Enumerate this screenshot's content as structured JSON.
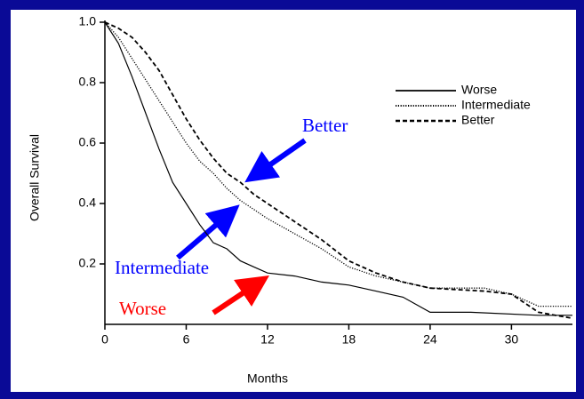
{
  "chart_data": {
    "type": "line",
    "x_label": "Months",
    "y_label": "Overall Survival",
    "xlim": [
      0,
      34.5
    ],
    "ylim": [
      0,
      1
    ],
    "xticks": [
      0,
      6,
      12,
      18,
      24,
      30
    ],
    "yticks": [
      0.2,
      0.4,
      0.6,
      0.8,
      {
        "value": 1,
        "label": "1.0"
      }
    ],
    "legend": "upper right",
    "series": [
      {
        "name": "Worse",
        "color": "#000000",
        "dash": "solid",
        "x": [
          0,
          1,
          2,
          3,
          4,
          5,
          6,
          7,
          8,
          9,
          10,
          11,
          12,
          14,
          16,
          18,
          20,
          22,
          24,
          27,
          32,
          34.5
        ],
        "values": [
          1,
          0.93,
          0.82,
          0.7,
          0.58,
          0.47,
          0.4,
          0.33,
          0.27,
          0.25,
          0.21,
          0.19,
          0.17,
          0.16,
          0.14,
          0.13,
          0.11,
          0.09,
          0.04,
          0.04,
          0.03,
          0.03
        ]
      },
      {
        "name": "Intermediate",
        "color": "#000000",
        "dash": "dotted",
        "x": [
          0,
          1,
          2,
          3,
          4,
          5,
          6,
          7,
          8,
          9,
          10,
          11,
          12,
          14,
          16,
          18,
          20,
          22,
          24,
          28,
          30,
          32,
          34.5
        ],
        "values": [
          1,
          0.95,
          0.88,
          0.81,
          0.74,
          0.67,
          0.6,
          0.54,
          0.5,
          0.45,
          0.41,
          0.38,
          0.35,
          0.3,
          0.25,
          0.19,
          0.16,
          0.14,
          0.12,
          0.12,
          0.1,
          0.06,
          0.06
        ]
      },
      {
        "name": "Better",
        "color": "#000000",
        "dash": "dashed",
        "x": [
          0,
          1,
          2,
          3,
          4,
          5,
          6,
          7,
          8,
          9,
          10,
          11,
          12,
          14,
          16,
          18,
          20,
          22,
          24,
          28,
          30,
          32,
          34.5
        ],
        "values": [
          1,
          0.98,
          0.95,
          0.9,
          0.84,
          0.76,
          0.68,
          0.61,
          0.55,
          0.5,
          0.47,
          0.43,
          0.4,
          0.34,
          0.28,
          0.21,
          0.17,
          0.14,
          0.12,
          0.11,
          0.1,
          0.04,
          0.02
        ]
      }
    ],
    "annotations": [
      {
        "text": "Better",
        "color": "#0000ff"
      },
      {
        "text": "Intermediate",
        "color": "#0000ff"
      },
      {
        "text": "Worse",
        "color": "#ff0000"
      }
    ]
  }
}
